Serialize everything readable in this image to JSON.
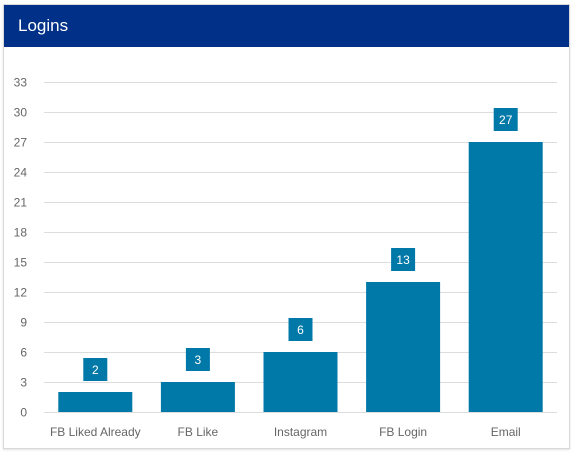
{
  "panel": {
    "title": "Logins"
  },
  "colors": {
    "header_bg": "#003087",
    "bar": "#0079a8",
    "label_bg": "#0079a8",
    "gridline": "#dddddd",
    "tick_text": "#666666"
  },
  "chart_data": {
    "type": "bar",
    "title": "Logins",
    "xlabel": "",
    "ylabel": "",
    "categories": [
      "FB Liked Already",
      "FB Like",
      "Instagram",
      "FB Login",
      "Email"
    ],
    "values": [
      2,
      3,
      6,
      13,
      27
    ],
    "ylim": [
      0,
      33
    ],
    "yticks": [
      0,
      3,
      6,
      9,
      12,
      15,
      18,
      21,
      24,
      27,
      30,
      33
    ],
    "grid": true,
    "legend": "none",
    "data_labels": true
  }
}
